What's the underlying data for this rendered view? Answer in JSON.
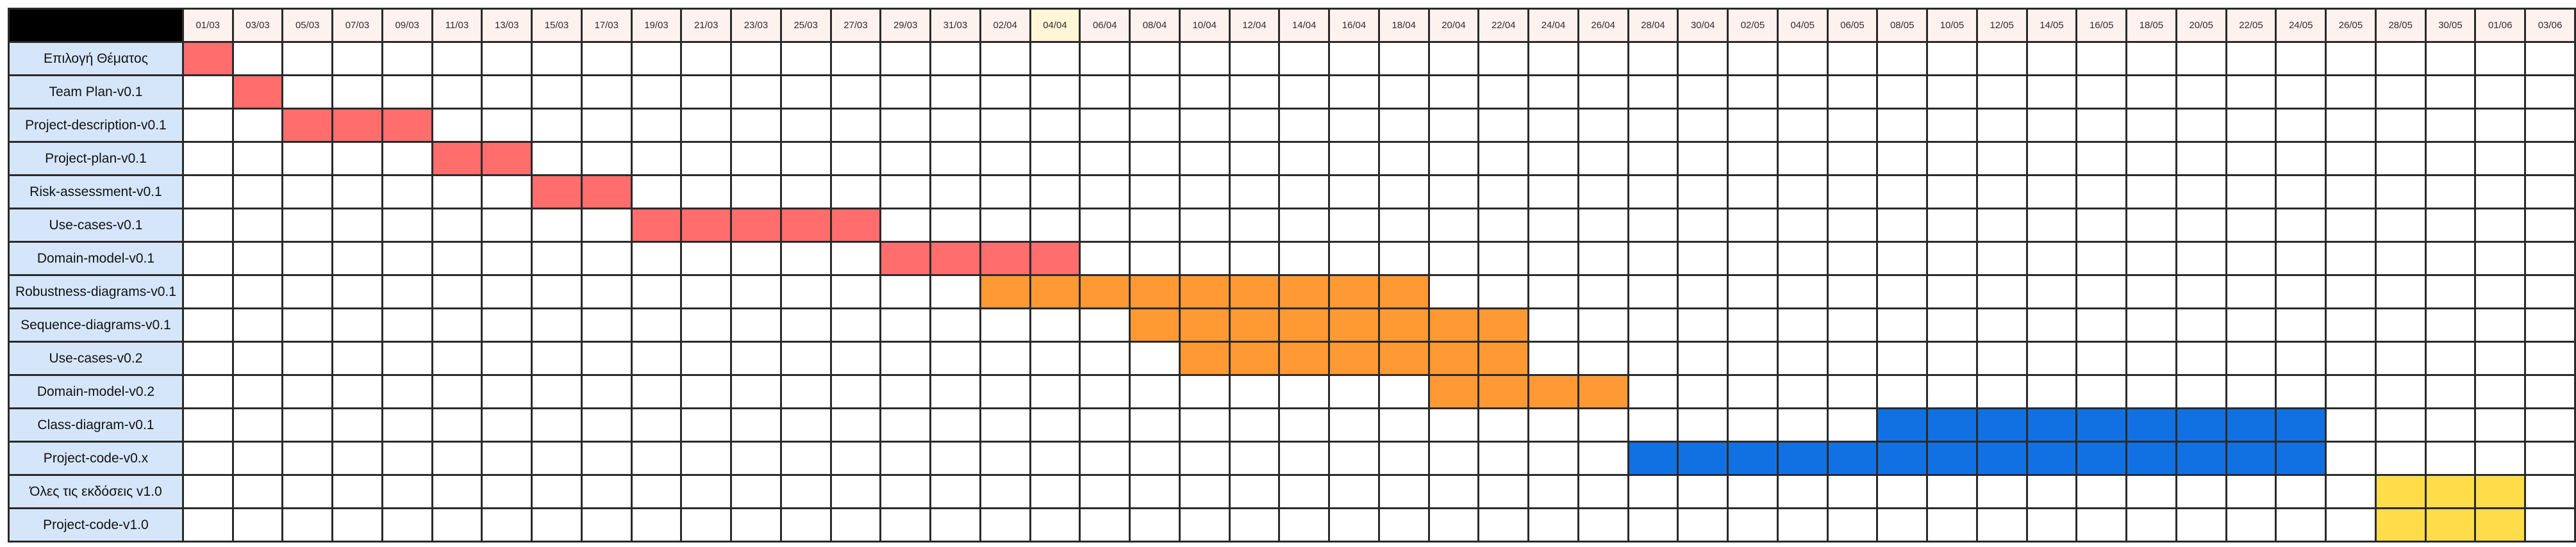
{
  "colors": {
    "header_bg": "#000000",
    "date_header_bg": "#fdf2ee",
    "highlight_date_bg": "#fff6d6",
    "label_bg": "#d6e6fa",
    "grid_line": "#2a2a2a",
    "bar_red": "#ff6d6d",
    "bar_orange": "#ff9933",
    "bar_blue": "#1271e2",
    "bar_yellow": "#ffdd4a"
  },
  "highlight_date": "04/04",
  "dates": [
    "01/03",
    "03/03",
    "05/03",
    "07/03",
    "09/03",
    "11/03",
    "13/03",
    "15/03",
    "17/03",
    "19/03",
    "21/03",
    "23/03",
    "25/03",
    "27/03",
    "29/03",
    "31/03",
    "02/04",
    "04/04",
    "06/04",
    "08/04",
    "10/04",
    "12/04",
    "14/04",
    "16/04",
    "18/04",
    "20/04",
    "22/04",
    "24/04",
    "26/04",
    "28/04",
    "30/04",
    "02/05",
    "04/05",
    "06/05",
    "08/05",
    "10/05",
    "12/05",
    "14/05",
    "16/05",
    "18/05",
    "20/05",
    "22/05",
    "24/05",
    "26/05",
    "28/05",
    "30/05",
    "01/06",
    "03/06"
  ],
  "tasks": [
    {
      "label": "Επιλογή Θέματος",
      "start": "01/03",
      "end": "01/03",
      "color": "bar_red"
    },
    {
      "label": "Team Plan-v0.1",
      "start": "03/03",
      "end": "03/03",
      "color": "bar_red"
    },
    {
      "label": "Project-description-v0.1",
      "start": "05/03",
      "end": "09/03",
      "color": "bar_red"
    },
    {
      "label": "Project-plan-v0.1",
      "start": "11/03",
      "end": "13/03",
      "color": "bar_red"
    },
    {
      "label": "Risk-assessment-v0.1",
      "start": "15/03",
      "end": "17/03",
      "color": "bar_red"
    },
    {
      "label": "Use-cases-v0.1",
      "start": "19/03",
      "end": "27/03",
      "color": "bar_red"
    },
    {
      "label": "Domain-model-v0.1",
      "start": "29/03",
      "end": "04/04",
      "color": "bar_red"
    },
    {
      "label": "Robustness-diagrams-v0.1",
      "start": "02/04",
      "end": "18/04",
      "color": "bar_orange"
    },
    {
      "label": "Sequence-diagrams-v0.1",
      "start": "08/04",
      "end": "22/04",
      "color": "bar_orange"
    },
    {
      "label": "Use-cases-v0.2",
      "start": "10/04",
      "end": "22/04",
      "color": "bar_orange"
    },
    {
      "label": "Domain-model-v0.2",
      "start": "20/04",
      "end": "26/04",
      "color": "bar_orange"
    },
    {
      "label": "Class-diagram-v0.1",
      "start": "08/05",
      "end": "24/05",
      "color": "bar_blue"
    },
    {
      "label": "Project-code-v0.x",
      "start": "28/04",
      "end": "24/05",
      "color": "bar_blue"
    },
    {
      "label": "Όλες τις εκδόσεις v1.0",
      "start": "28/05",
      "end": "01/06",
      "color": "bar_yellow"
    },
    {
      "label": "Project-code-v1.0",
      "start": "28/05",
      "end": "01/06",
      "color": "bar_yellow"
    }
  ]
}
